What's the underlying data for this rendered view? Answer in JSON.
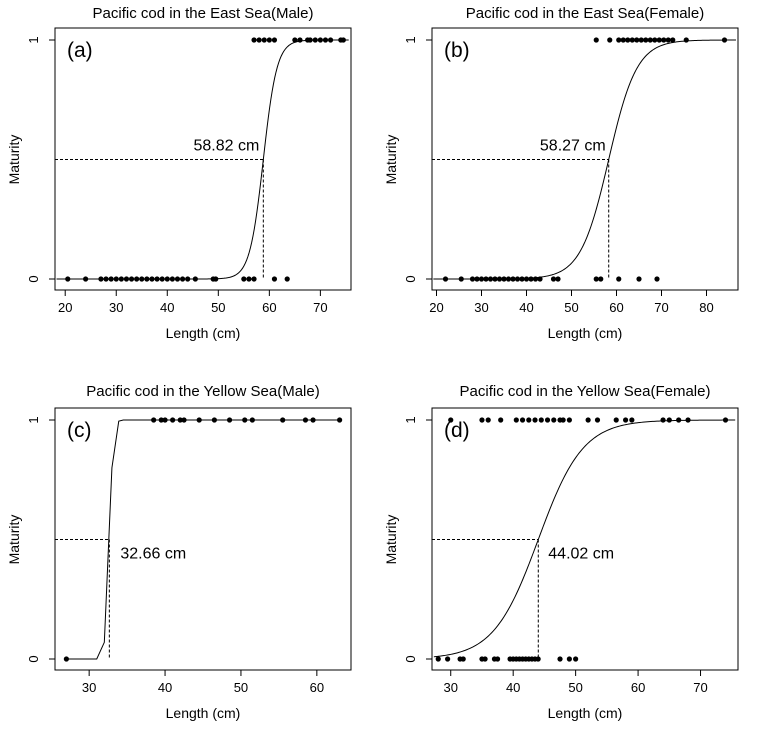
{
  "chart_data": [
    {
      "type": "scatter",
      "panel_label": "(a)",
      "title": "Pacific cod in the East Sea(Male)",
      "xlabel": "Length (cm)",
      "ylabel": "Maturity",
      "xlim": [
        18,
        76
      ],
      "ylim": [
        0,
        1
      ],
      "xticks": [
        20,
        30,
        40,
        50,
        60,
        70
      ],
      "yticks": [
        0,
        1
      ],
      "grid": false,
      "l50": 58.82,
      "l50_label": "58.82 cm",
      "curve_slope": 0.75,
      "series": [
        {
          "values": [
            {
              "x": 20.5,
              "y": 0
            },
            {
              "x": 24,
              "y": 0
            },
            {
              "x": 27,
              "y": 0
            },
            {
              "x": 28,
              "y": 0
            },
            {
              "x": 29,
              "y": 0
            },
            {
              "x": 30,
              "y": 0
            },
            {
              "x": 31,
              "y": 0
            },
            {
              "x": 32,
              "y": 0
            },
            {
              "x": 33,
              "y": 0
            },
            {
              "x": 34,
              "y": 0
            },
            {
              "x": 35,
              "y": 0
            },
            {
              "x": 36,
              "y": 0
            },
            {
              "x": 37,
              "y": 0
            },
            {
              "x": 38,
              "y": 0
            },
            {
              "x": 39,
              "y": 0
            },
            {
              "x": 40,
              "y": 0
            },
            {
              "x": 41,
              "y": 0
            },
            {
              "x": 42,
              "y": 0
            },
            {
              "x": 43,
              "y": 0
            },
            {
              "x": 44,
              "y": 0
            },
            {
              "x": 45.5,
              "y": 0
            },
            {
              "x": 49,
              "y": 0
            },
            {
              "x": 49.5,
              "y": 0
            },
            {
              "x": 55,
              "y": 0
            },
            {
              "x": 56,
              "y": 0
            },
            {
              "x": 57,
              "y": 0
            },
            {
              "x": 61,
              "y": 0
            },
            {
              "x": 63.5,
              "y": 0
            },
            {
              "x": 57,
              "y": 1
            },
            {
              "x": 58,
              "y": 1
            },
            {
              "x": 59,
              "y": 1
            },
            {
              "x": 60,
              "y": 1
            },
            {
              "x": 61,
              "y": 1
            },
            {
              "x": 65,
              "y": 1
            },
            {
              "x": 66,
              "y": 1
            },
            {
              "x": 67.5,
              "y": 1
            },
            {
              "x": 68,
              "y": 1
            },
            {
              "x": 69,
              "y": 1
            },
            {
              "x": 70,
              "y": 1
            },
            {
              "x": 71,
              "y": 1
            },
            {
              "x": 72,
              "y": 1
            },
            {
              "x": 74,
              "y": 1
            },
            {
              "x": 74.5,
              "y": 1
            }
          ]
        }
      ]
    },
    {
      "type": "scatter",
      "panel_label": "(b)",
      "title": "Pacific cod in the East Sea(Female)",
      "xlabel": "Length (cm)",
      "ylabel": "Maturity",
      "xlim": [
        19,
        87
      ],
      "ylim": [
        0,
        1
      ],
      "xticks": [
        20,
        30,
        40,
        50,
        60,
        70,
        80
      ],
      "yticks": [
        0,
        1
      ],
      "grid": false,
      "l50": 58.27,
      "l50_label": "58.27 cm",
      "curve_slope": 0.32,
      "series": [
        {
          "values": [
            {
              "x": 22,
              "y": 0
            },
            {
              "x": 25.5,
              "y": 0
            },
            {
              "x": 28,
              "y": 0
            },
            {
              "x": 29,
              "y": 0
            },
            {
              "x": 30,
              "y": 0
            },
            {
              "x": 31,
              "y": 0
            },
            {
              "x": 32,
              "y": 0
            },
            {
              "x": 33,
              "y": 0
            },
            {
              "x": 34,
              "y": 0
            },
            {
              "x": 35,
              "y": 0
            },
            {
              "x": 36,
              "y": 0
            },
            {
              "x": 37,
              "y": 0
            },
            {
              "x": 38,
              "y": 0
            },
            {
              "x": 39,
              "y": 0
            },
            {
              "x": 40,
              "y": 0
            },
            {
              "x": 41,
              "y": 0
            },
            {
              "x": 42,
              "y": 0
            },
            {
              "x": 43,
              "y": 0
            },
            {
              "x": 46,
              "y": 0
            },
            {
              "x": 47,
              "y": 0
            },
            {
              "x": 55.5,
              "y": 0
            },
            {
              "x": 56.5,
              "y": 0
            },
            {
              "x": 60.5,
              "y": 0
            },
            {
              "x": 65,
              "y": 0
            },
            {
              "x": 69,
              "y": 0
            },
            {
              "x": 55.5,
              "y": 1
            },
            {
              "x": 58.5,
              "y": 1
            },
            {
              "x": 60.5,
              "y": 1
            },
            {
              "x": 61.5,
              "y": 1
            },
            {
              "x": 62.5,
              "y": 1
            },
            {
              "x": 63.5,
              "y": 1
            },
            {
              "x": 64.5,
              "y": 1
            },
            {
              "x": 65.5,
              "y": 1
            },
            {
              "x": 66.5,
              "y": 1
            },
            {
              "x": 67.5,
              "y": 1
            },
            {
              "x": 68.5,
              "y": 1
            },
            {
              "x": 69.5,
              "y": 1
            },
            {
              "x": 70.5,
              "y": 1
            },
            {
              "x": 71.5,
              "y": 1
            },
            {
              "x": 72.5,
              "y": 1
            },
            {
              "x": 75.5,
              "y": 1
            },
            {
              "x": 84,
              "y": 1
            }
          ]
        }
      ]
    },
    {
      "type": "scatter",
      "panel_label": "(c)",
      "title": "Pacific cod in the Yellow Sea(Male)",
      "xlabel": "Length (cm)",
      "ylabel": "Maturity",
      "xlim": [
        25.5,
        64.5
      ],
      "ylim": [
        0,
        1
      ],
      "xticks": [
        30,
        40,
        50,
        60
      ],
      "yticks": [
        0,
        1
      ],
      "grid": false,
      "l50": 32.66,
      "l50_label": "32.66 cm",
      "curve_points": [
        [
          27,
          0
        ],
        [
          31,
          0
        ],
        [
          32,
          0.07
        ],
        [
          33,
          0.8
        ],
        [
          33.9,
          0.995
        ],
        [
          34.5,
          1
        ],
        [
          63,
          1
        ]
      ],
      "series": [
        {
          "values": [
            {
              "x": 27,
              "y": 0
            },
            {
              "x": 38.5,
              "y": 1
            },
            {
              "x": 39.5,
              "y": 1
            },
            {
              "x": 40,
              "y": 1
            },
            {
              "x": 41,
              "y": 1
            },
            {
              "x": 42,
              "y": 1
            },
            {
              "x": 42.5,
              "y": 1
            },
            {
              "x": 44.5,
              "y": 1
            },
            {
              "x": 46.5,
              "y": 1
            },
            {
              "x": 48.5,
              "y": 1
            },
            {
              "x": 50.5,
              "y": 1
            },
            {
              "x": 51.5,
              "y": 1
            },
            {
              "x": 55.5,
              "y": 1
            },
            {
              "x": 58.5,
              "y": 1
            },
            {
              "x": 59.5,
              "y": 1
            },
            {
              "x": 63,
              "y": 1
            }
          ]
        }
      ]
    },
    {
      "type": "scatter",
      "panel_label": "(d)",
      "title": "Pacific cod in the Yellow Sea(Female)",
      "xlabel": "Length (cm)",
      "ylabel": "Maturity",
      "xlim": [
        27,
        76
      ],
      "ylim": [
        0,
        1
      ],
      "xticks": [
        30,
        40,
        50,
        60,
        70
      ],
      "yticks": [
        0,
        1
      ],
      "grid": false,
      "l50": 44.02,
      "l50_label": "44.02 cm",
      "curve_slope": 0.28,
      "series": [
        {
          "values": [
            {
              "x": 28,
              "y": 0
            },
            {
              "x": 29.5,
              "y": 0
            },
            {
              "x": 31.5,
              "y": 0
            },
            {
              "x": 32,
              "y": 0
            },
            {
              "x": 35,
              "y": 0
            },
            {
              "x": 35.5,
              "y": 0
            },
            {
              "x": 37,
              "y": 0
            },
            {
              "x": 37.5,
              "y": 0
            },
            {
              "x": 39.5,
              "y": 0
            },
            {
              "x": 40,
              "y": 0
            },
            {
              "x": 40.5,
              "y": 0
            },
            {
              "x": 41,
              "y": 0
            },
            {
              "x": 41.5,
              "y": 0
            },
            {
              "x": 42,
              "y": 0
            },
            {
              "x": 42.5,
              "y": 0
            },
            {
              "x": 43,
              "y": 0
            },
            {
              "x": 43.5,
              "y": 0
            },
            {
              "x": 44,
              "y": 0
            },
            {
              "x": 47.5,
              "y": 0
            },
            {
              "x": 49,
              "y": 0
            },
            {
              "x": 50,
              "y": 0
            },
            {
              "x": 30,
              "y": 1
            },
            {
              "x": 35,
              "y": 1
            },
            {
              "x": 36,
              "y": 1
            },
            {
              "x": 38,
              "y": 1
            },
            {
              "x": 40.5,
              "y": 1
            },
            {
              "x": 41.5,
              "y": 1
            },
            {
              "x": 42.5,
              "y": 1
            },
            {
              "x": 43.5,
              "y": 1
            },
            {
              "x": 44.5,
              "y": 1
            },
            {
              "x": 45.5,
              "y": 1
            },
            {
              "x": 46.5,
              "y": 1
            },
            {
              "x": 47.5,
              "y": 1
            },
            {
              "x": 48,
              "y": 1
            },
            {
              "x": 49,
              "y": 1
            },
            {
              "x": 52,
              "y": 1
            },
            {
              "x": 53.5,
              "y": 1
            },
            {
              "x": 56.5,
              "y": 1
            },
            {
              "x": 58,
              "y": 1
            },
            {
              "x": 59,
              "y": 1
            },
            {
              "x": 64,
              "y": 1
            },
            {
              "x": 65,
              "y": 1
            },
            {
              "x": 66.5,
              "y": 1
            },
            {
              "x": 68,
              "y": 1
            },
            {
              "x": 74,
              "y": 1
            }
          ]
        }
      ]
    }
  ]
}
